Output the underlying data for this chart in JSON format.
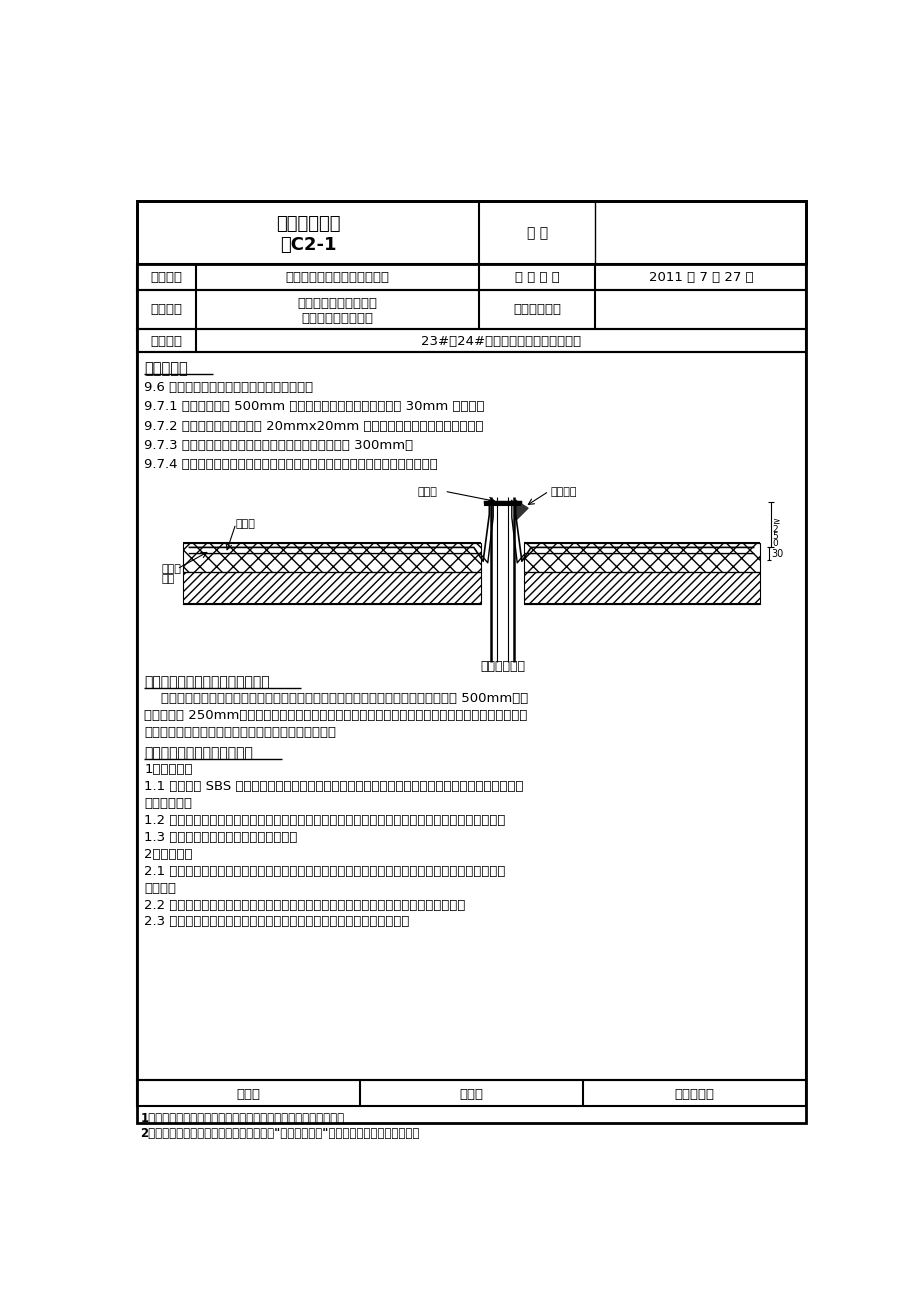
{
  "title1": "技术交底记录",
  "title2": "表C2-1",
  "biaohao": "编 号",
  "row2_label1": "工程名称",
  "row2_val1": "北京市丰台区黄土岗居住项目",
  "row2_label2": "交 底 日 期",
  "row2_val2": "2011 年 7 月 27 日",
  "row3_label1": "施工单位",
  "row3_val1a": "中铁建设集团有限公司",
  "row3_val1b": "第二十八项目经理部",
  "row3_label2": "分项工程名称",
  "row4_label1": "交底提要",
  "row4_val1": "23#、24#屋面卷材防水施工技术交底",
  "section_title1": "交底内容：",
  "content_lines": [
    "9.6 伸出屋面管道的防水构造符合下列要求：",
    "9.7.1 管道根部直径 500mm 范围内，找平层抹出高度不小于 30mm 的圆台。",
    "9.7.2 管道周围与找平层预留 20mmx20mm 的凹槽，并用密封材料嵌填严密。",
    "9.7.3 管道根部四周增设附加层，宽度和高度均不小于 300mm。",
    "9.7.4 管道上的防水层收头处用金属箍紧固，并用密封材料封严。见下页详图："
  ],
  "section_title2": "五、关键工序及特殊工序控制措施",
  "section2_content": [
    "    附加层施工：所有的阴阳角、套管管根、预埋件处必须有附加层。附加层宽度不小于 500mm，两",
    "边均匀搭接 250mm，在由三个面组成的阴角、底板外侧立在与平面交接处阴角、以及防水容易被从外",
    "侧损坏的地方，还需在防水外面加第三层附加保护层。"
  ],
  "section_title3": "六、卷材防水层施工质量标准",
  "section3_content": [
    "1、主控项目",
    "1.1 改性沥青 SBS 防水卷材和胶粘剂的规格、性能、配合比必须符合规范要求，有合格的出厂证明、",
    "检验报告等。",
    "1.2 卷材防水层及其转角处、落水口、烟风道、泛水等细部做法，必须符合设计要求和施工验收规范",
    "1.3 防水层严禁有破损和渗漏现象发生。",
    "2、一般项目",
    "2.1 卷材防水层的基层平整、基层洁净、平整，无空鼓、松动、起砂和脱皮现象；基层阴阳角成弧形",
    "或钝角。",
    "2.2 卷材防水层的搭接缝粘接牢固，密封严密，不得有损伤、皱折、翘边和鼓泡等缺陷。",
    "2.3 卷材防水层的保护层与防水层粘结牢固，结合紧密，厚度均匀一致。"
  ],
  "footer_row": [
    "审核人",
    "交底人",
    "接受交底人"
  ],
  "footer_note1": "1、本表由施工单位填写，交底单位与接受交底单位各保存一份。",
  "footer_note2": "2、当做分项工程施工技术交底时，应填写\"分项工程名称\"栏，其他技术交底可不填写。",
  "bg_color": "#ffffff",
  "border_color": "#000000",
  "text_color": "#000000"
}
